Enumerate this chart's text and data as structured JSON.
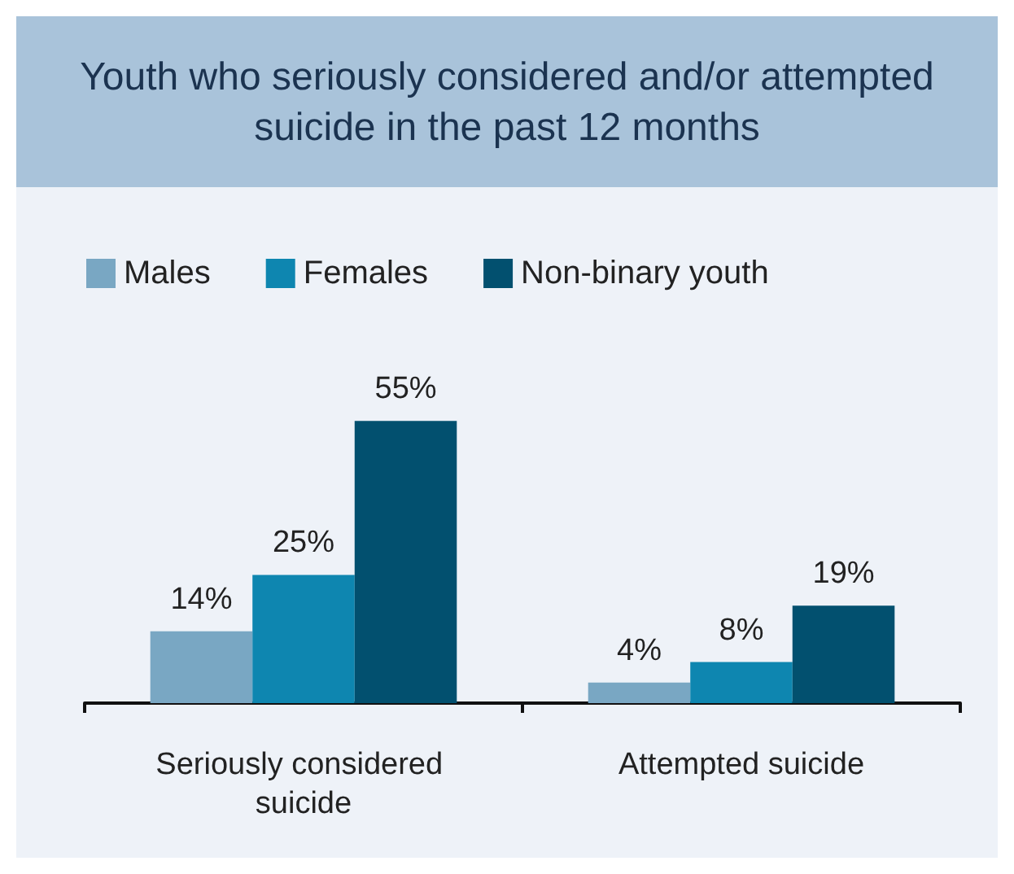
{
  "chart_data": {
    "type": "bar",
    "title": "Youth who seriously considered and/or attempted suicide in the past 12 months",
    "categories": [
      "Seriously considered suicide",
      "Attempted suicide"
    ],
    "series": [
      {
        "name": "Males",
        "color": "#79a7c3",
        "values": [
          14,
          4
        ],
        "value_labels": [
          "14%",
          "4%"
        ]
      },
      {
        "name": "Females",
        "color": "#0e86b0",
        "values": [
          25,
          8
        ],
        "value_labels": [
          "25%",
          "8%"
        ]
      },
      {
        "name": "Non-binary youth",
        "color": "#02506f",
        "values": [
          55,
          19
        ],
        "value_labels": [
          "55%",
          "19%"
        ]
      }
    ],
    "legend": "top left"
  }
}
